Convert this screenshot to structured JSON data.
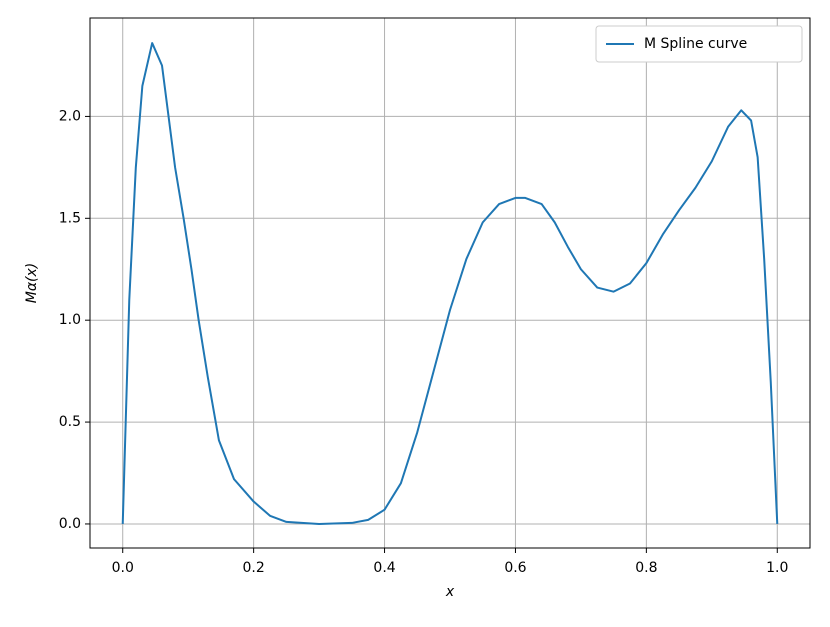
{
  "chart_data": {
    "type": "line",
    "xlabel": "x",
    "ylabel": "Mα(x)",
    "x": [
      0,
      0.01,
      0.02,
      0.03,
      0.045,
      0.06,
      0.07,
      0.08,
      0.093,
      0.105,
      0.116,
      0.13,
      0.147,
      0.17,
      0.2,
      0.225,
      0.25,
      0.3,
      0.35,
      0.375,
      0.4,
      0.425,
      0.45,
      0.475,
      0.5,
      0.525,
      0.55,
      0.575,
      0.6,
      0.615,
      0.64,
      0.66,
      0.68,
      0.7,
      0.725,
      0.75,
      0.775,
      0.8,
      0.825,
      0.85,
      0.875,
      0.9,
      0.925,
      0.945,
      0.96,
      0.97,
      0.98,
      0.99,
      1.0
    ],
    "series": [
      {
        "name": "M Spline curve",
        "color": "#1f77b4",
        "values": [
          0,
          1.1,
          1.75,
          2.15,
          2.36,
          2.25,
          2.0,
          1.75,
          1.5,
          1.25,
          1.0,
          0.72,
          0.41,
          0.22,
          0.11,
          0.04,
          0.01,
          0,
          0.005,
          0.02,
          0.07,
          0.2,
          0.45,
          0.75,
          1.05,
          1.3,
          1.48,
          1.57,
          1.6,
          1.6,
          1.57,
          1.48,
          1.36,
          1.25,
          1.16,
          1.14,
          1.18,
          1.28,
          1.42,
          1.54,
          1.65,
          1.78,
          1.95,
          2.03,
          1.98,
          1.8,
          1.3,
          0.7,
          0
        ]
      }
    ],
    "xlim": [
      -0.05,
      1.05
    ],
    "ylim": [
      -0.118,
      2.483
    ],
    "xticks": [
      {
        "value": 0,
        "label": "0.0"
      },
      0.2,
      0.4,
      0.6,
      0.8,
      {
        "value": 1,
        "label": "1.0"
      }
    ],
    "yticks": [
      {
        "value": 0,
        "label": "0.0"
      },
      0.5,
      {
        "value": 1,
        "label": "1.0"
      },
      1.5,
      {
        "value": 2,
        "label": "2.0"
      }
    ],
    "grid": true,
    "legend": "upper-right"
  }
}
